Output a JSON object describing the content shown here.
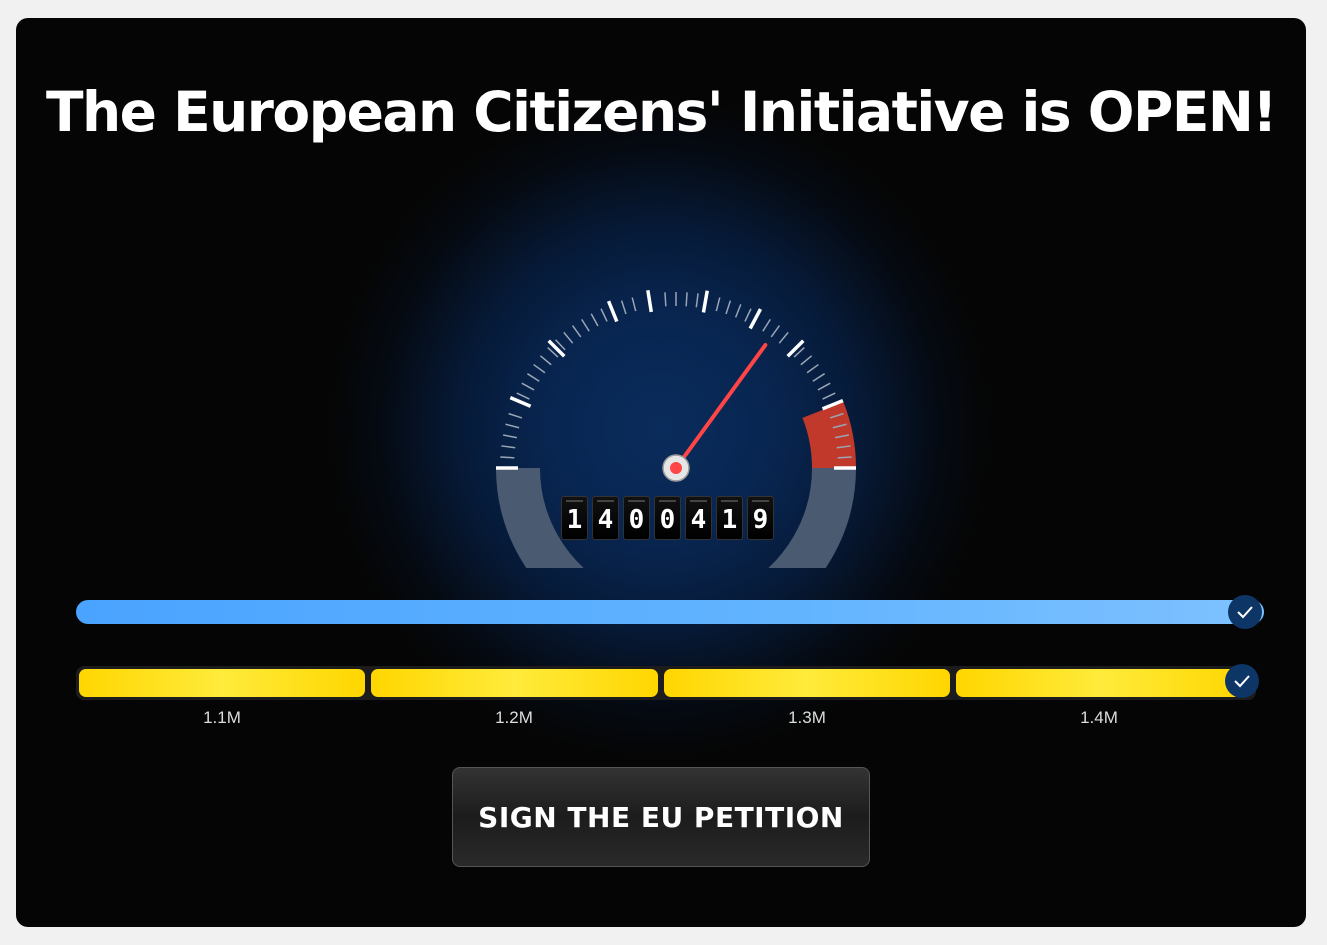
{
  "title": "The European Citizens' Initiative is OPEN!",
  "signature_count": "1400419",
  "gauge": {
    "needle_fraction": 0.7,
    "red_zone_start_fraction": 0.88
  },
  "progress": {
    "percent": 100,
    "completed": true,
    "icon": "check-icon"
  },
  "milestones": [
    {
      "label": "1.1M",
      "fill_percent": 100
    },
    {
      "label": "1.2M",
      "fill_percent": 100
    },
    {
      "label": "1.3M",
      "fill_percent": 100
    },
    {
      "label": "1.4M",
      "fill_percent": 100,
      "completed": true
    }
  ],
  "cta": {
    "label": "SIGN THE EU PETITION"
  },
  "colors": {
    "accent_blue": "#4aa3ff",
    "milestone_yellow": "#ffd600",
    "needle_red": "#ff4040",
    "red_zone": "#c0392b"
  }
}
